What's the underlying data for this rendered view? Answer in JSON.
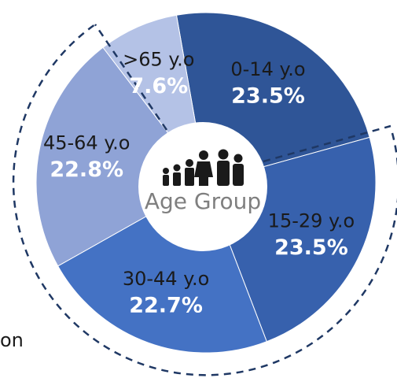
{
  "chart_data": {
    "type": "donut",
    "categories": [
      "0-14 y.o",
      "15-29 y.o",
      "30-44 y.o",
      "45-64 y.o",
      ">65 y.o"
    ],
    "values": [
      23.5,
      23.5,
      22.7,
      22.8,
      7.6
    ],
    "value_labels": [
      "23.5%",
      "23.5%",
      "22.7%",
      "22.8%",
      "7.6%"
    ],
    "colors": [
      "#2f5597",
      "#3761ad",
      "#4472c4",
      "#8fa3d6",
      "#b4c2e6"
    ],
    "center_label": "Age Group",
    "annotation": "on"
  }
}
